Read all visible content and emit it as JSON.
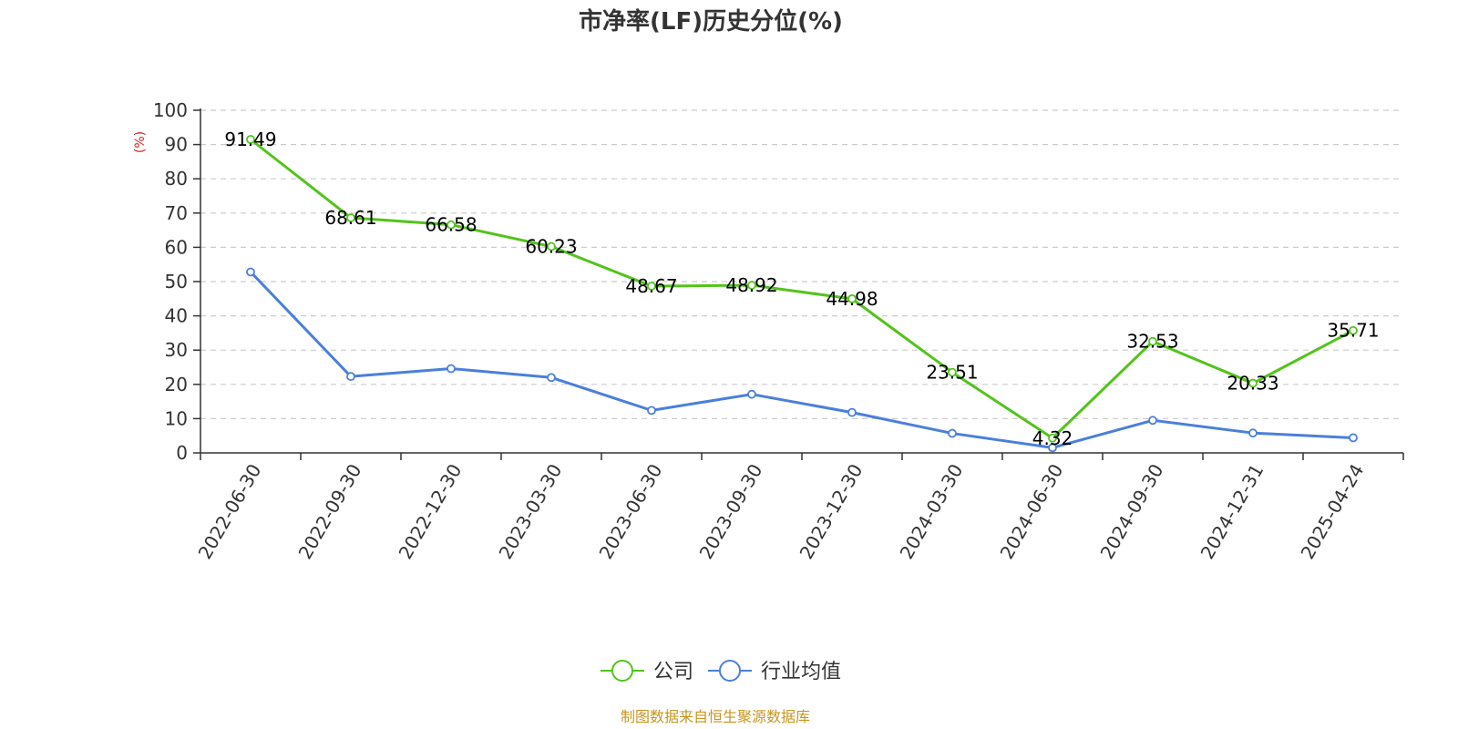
{
  "chart_data": {
    "type": "line",
    "title": "市净率(LF)历史分位(%)",
    "y_unit_label": "(%)",
    "categories": [
      "2022-06-30",
      "2022-09-30",
      "2022-12-30",
      "2023-03-30",
      "2023-06-30",
      "2023-09-30",
      "2023-12-30",
      "2024-03-30",
      "2024-06-30",
      "2024-09-30",
      "2024-12-31",
      "2025-04-24"
    ],
    "series": [
      {
        "name": "公司",
        "color": "#52c41a",
        "show_labels": true,
        "values": [
          91.49,
          68.61,
          66.58,
          60.23,
          48.67,
          48.92,
          44.98,
          23.51,
          4.32,
          32.53,
          20.33,
          35.71
        ]
      },
      {
        "name": "行业均值",
        "color": "#4a7fdc",
        "show_labels": false,
        "values": [
          52.8,
          22.3,
          24.6,
          22.0,
          12.4,
          17.1,
          11.8,
          5.7,
          1.5,
          9.5,
          5.8,
          4.4
        ]
      }
    ],
    "ylim": [
      0,
      100
    ],
    "yticks": [
      0,
      10,
      20,
      30,
      40,
      50,
      60,
      70,
      80,
      90,
      100
    ],
    "grid": true,
    "legend_position": "bottom-center",
    "colors": {
      "unit_label": "#e02020",
      "source": "#c8961e",
      "axis": "#333333",
      "grid": "#cccccc"
    }
  },
  "source_text": "制图数据来自恒生聚源数据库"
}
